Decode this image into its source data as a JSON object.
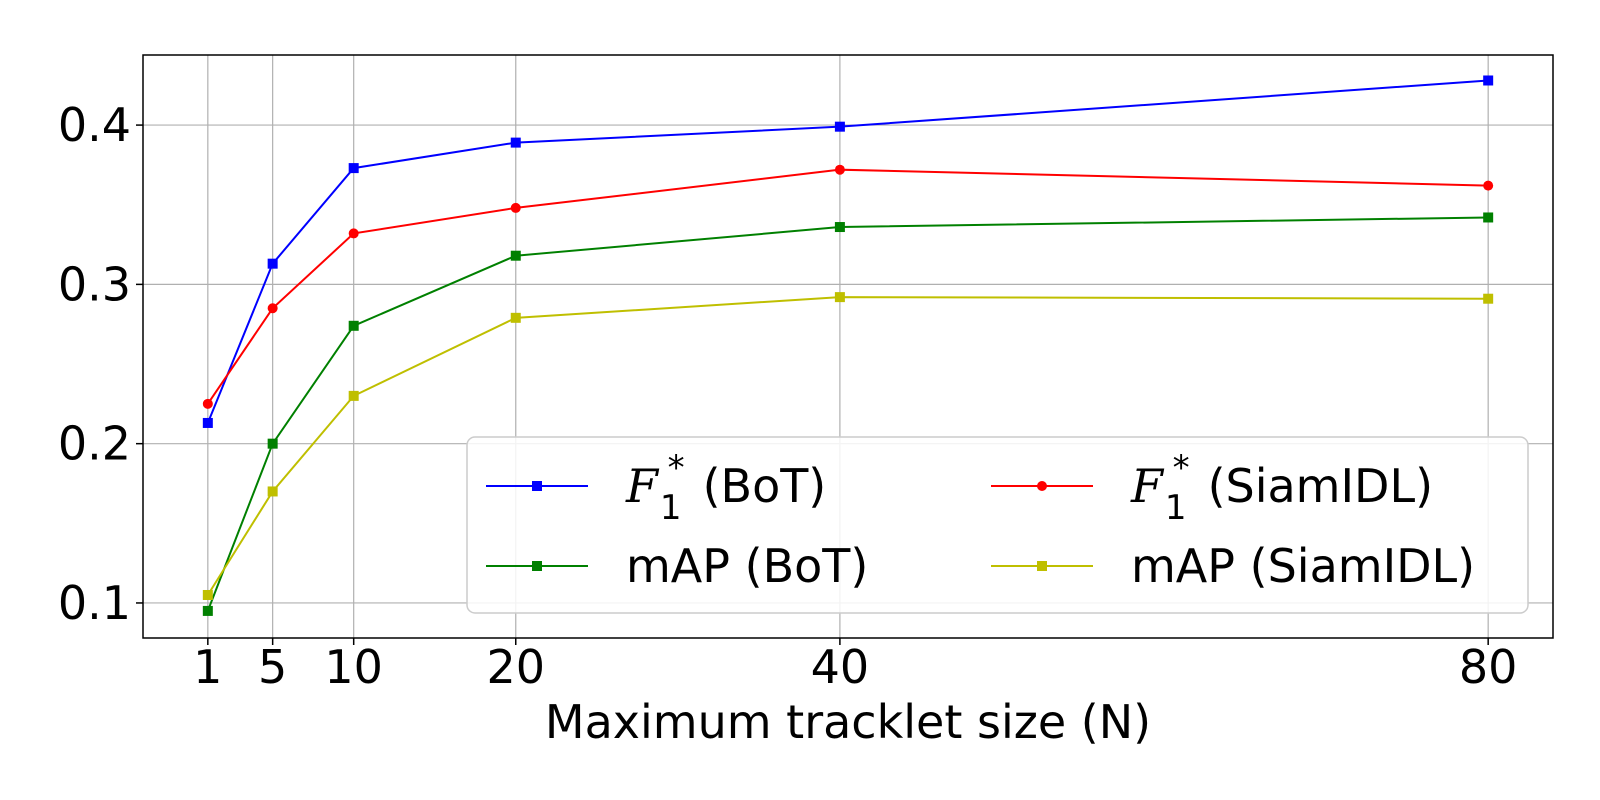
{
  "chart_data": {
    "type": "line",
    "title": "",
    "xlabel": "Maximum tracklet size (N)",
    "ylabel": "",
    "x": [
      1,
      5,
      10,
      20,
      40,
      80
    ],
    "x_tick_labels": [
      "1",
      "5",
      "10",
      "20",
      "40",
      "80"
    ],
    "xlim": [
      -3,
      84
    ],
    "ylim": [
      0.078,
      0.444
    ],
    "y_ticks": [
      0.1,
      0.2,
      0.3,
      0.4
    ],
    "y_tick_labels": [
      "0.1",
      "0.2",
      "0.3",
      "0.4"
    ],
    "grid": true,
    "legend": {
      "placement": "lower-right",
      "columns": 2
    },
    "series": [
      {
        "name": "F1* (BoT)",
        "math": "F",
        "sub": "1",
        "sup": "*",
        "suffix": "(BoT)",
        "color": "#0000ff",
        "marker": "square",
        "values": [
          0.213,
          0.313,
          0.373,
          0.389,
          0.399,
          0.428
        ]
      },
      {
        "name": "F1* (SiamIDL)",
        "math": "F",
        "sub": "1",
        "sup": "*",
        "suffix": "(SiamIDL)",
        "color": "#ff0000",
        "marker": "circle",
        "values": [
          0.225,
          0.285,
          0.332,
          0.348,
          0.372,
          0.362
        ]
      },
      {
        "name": "mAP (BoT)",
        "color": "#008000",
        "marker": "square",
        "values": [
          0.095,
          0.2,
          0.274,
          0.318,
          0.336,
          0.342
        ]
      },
      {
        "name": "mAP (SiamIDL)",
        "color": "#bfbf00",
        "marker": "square",
        "values": [
          0.105,
          0.17,
          0.23,
          0.279,
          0.292,
          0.291
        ]
      }
    ]
  }
}
